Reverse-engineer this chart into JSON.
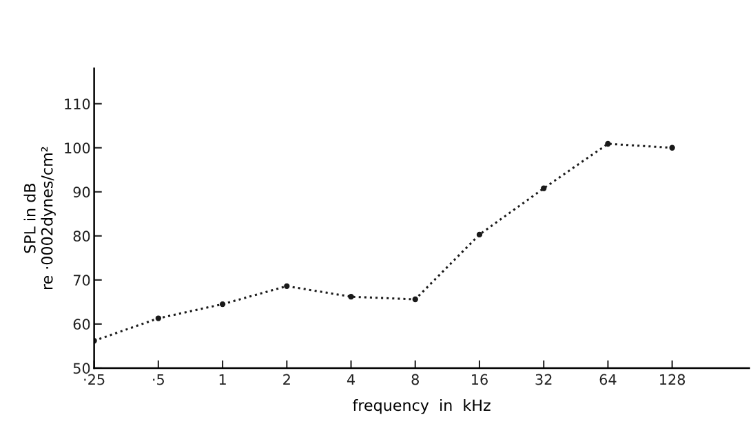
{
  "chart_data": {
    "type": "line",
    "xlabel": "frequency  in  kHz",
    "ylabel": "SPL in dB\nre ·0002dynes/cm²",
    "categories": [
      "·25",
      "·5",
      "1",
      "2",
      "4",
      "8",
      "16",
      "32",
      "64",
      "128"
    ],
    "series": [
      {
        "color": "#1a1a1a",
        "values": [
          56.2,
          61.3,
          64.5,
          68.6,
          66.2,
          65.6,
          80.3,
          90.8,
          100.9,
          100.0
        ]
      }
    ],
    "ylim": [
      50,
      118
    ],
    "yticks": [
      50,
      60,
      70,
      80,
      90,
      100,
      110
    ],
    "grid": false,
    "legend": false,
    "marker": "circle",
    "line_style": "dotted"
  }
}
